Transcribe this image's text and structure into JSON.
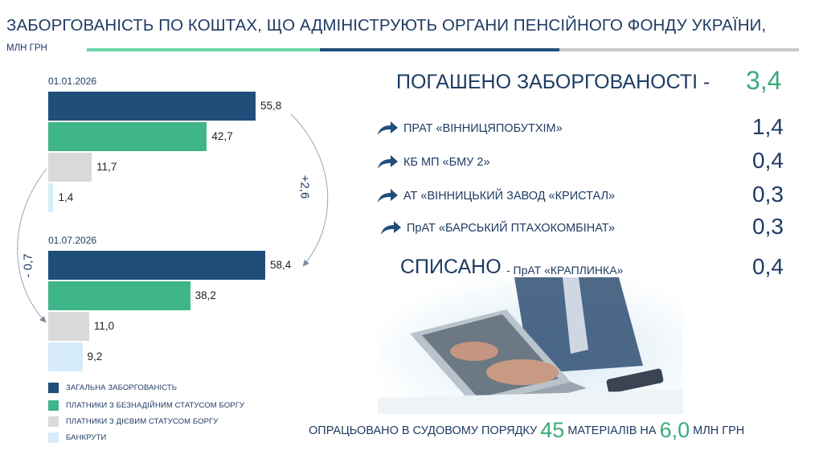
{
  "title": "ЗАБОРГОВАНІСТЬ ПО КОШТАХ, ЩО АДМІНІСТРУЮТЬ ОРГАНИ ПЕНСІЙНОГО ФОНДУ УКРАЇНИ,",
  "subtitle": "МЛН ГРН",
  "colors": {
    "total": "#1f4e7a",
    "hopeless": "#3fb58a",
    "active": "#d9d9d9",
    "bankrupt": "#d6ecfa",
    "accent": "#3aaa7a",
    "text": "#1f3b63"
  },
  "chart_data": {
    "type": "bar",
    "orientation": "horizontal",
    "groups": [
      "01.01.2026",
      "01.07.2026"
    ],
    "series": [
      {
        "name": "ЗАГАЛЬНА ЗАБОРГОВАНІСТЬ",
        "values": [
          55.8,
          58.4
        ],
        "labels": [
          "55,8",
          "58,4"
        ]
      },
      {
        "name": "ПЛАТНИКИ З БЕЗНАДІЙНИМ СТАТУСОМ БОРГУ",
        "values": [
          42.7,
          38.2
        ],
        "labels": [
          "42,7",
          "38,2"
        ]
      },
      {
        "name": "ПЛАТНИКИ З ДІЄВИМ СТАТУСОМ БОРГУ",
        "values": [
          11.7,
          11.0
        ],
        "labels": [
          "11,7",
          "11,0"
        ]
      },
      {
        "name": "БАНКРУТИ",
        "values": [
          1.4,
          9.2
        ],
        "labels": [
          "1,4",
          "9,2"
        ]
      }
    ],
    "annotations": [
      "+2,6",
      "- 0,7"
    ],
    "legend_position": "bottom-left"
  },
  "summary": {
    "repaid_label": "ПОГАШЕНО ЗАБОРГОВАНОСТІ  -",
    "repaid_value": "3,4",
    "items": [
      {
        "name": "ПРАТ «ВІННИЦЯПОБУТХІМ»",
        "value": "1,4"
      },
      {
        "name": "КБ МП «БМУ 2»",
        "value": "0,4"
      },
      {
        "name": "АТ «ВІННИЦЬКИЙ ЗАВОД «КРИСТАЛ»",
        "value": "0,3"
      },
      {
        "name": "ПрАТ «БАРСЬКИЙ ПТАХОКОМБІНАТ»",
        "value": "0,3"
      }
    ],
    "written_off_label": "СПИСАНО",
    "written_off_sub": "- ПрАТ «КРАПЛИНКА»",
    "written_off_value": "0,4"
  },
  "icons": {
    "item_arrow": "curved-arrow-icon",
    "photo": "laptop-typing-photo"
  },
  "bottom": {
    "part1": "ОПРАЦЬОВАНО  В СУДОВОМУ ПОРЯДКУ ",
    "count": "45",
    "part2": " МАТЕРІАЛІВ НА ",
    "amount": "6,0",
    "part3": " МЛН ГРН"
  }
}
